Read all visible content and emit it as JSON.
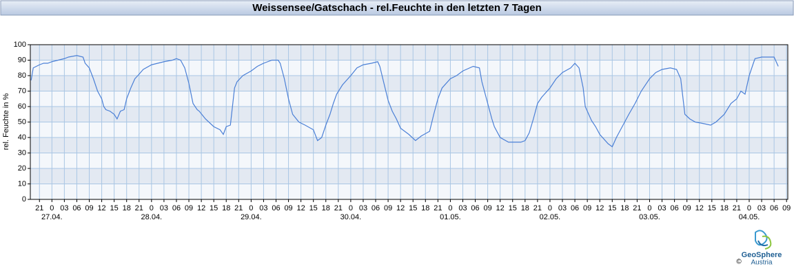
{
  "chart_data": {
    "type": "line",
    "title": "Weissensee/Gatschach - rel.Feuchte in den letzten 7 Tagen",
    "ylabel": "rel. Feuchte in %",
    "color": "#4a7fd6",
    "grid": true,
    "ylim": [
      0,
      100
    ],
    "yticks": [
      0,
      10,
      20,
      30,
      40,
      50,
      60,
      70,
      80,
      90,
      100
    ],
    "xlim": [
      -5.2,
      177.3
    ],
    "xticks": [
      {
        "value": -3,
        "label": "21"
      },
      {
        "value": 0,
        "label": "0"
      },
      {
        "value": 3,
        "label": "03"
      },
      {
        "value": 6,
        "label": "06"
      },
      {
        "value": 9,
        "label": "09"
      },
      {
        "value": 12,
        "label": "12"
      },
      {
        "value": 15,
        "label": "15"
      },
      {
        "value": 18,
        "label": "18"
      },
      {
        "value": 21,
        "label": "21"
      },
      {
        "value": 24,
        "label": "0"
      },
      {
        "value": 27,
        "label": "03"
      },
      {
        "value": 30,
        "label": "06"
      },
      {
        "value": 33,
        "label": "09"
      },
      {
        "value": 36,
        "label": "12"
      },
      {
        "value": 39,
        "label": "15"
      },
      {
        "value": 42,
        "label": "18"
      },
      {
        "value": 45,
        "label": "21"
      },
      {
        "value": 48,
        "label": "0"
      },
      {
        "value": 51,
        "label": "03"
      },
      {
        "value": 54,
        "label": "06"
      },
      {
        "value": 57,
        "label": "09"
      },
      {
        "value": 60,
        "label": "12"
      },
      {
        "value": 63,
        "label": "15"
      },
      {
        "value": 66,
        "label": "18"
      },
      {
        "value": 69,
        "label": "21"
      },
      {
        "value": 72,
        "label": "0"
      },
      {
        "value": 75,
        "label": "03"
      },
      {
        "value": 78,
        "label": "06"
      },
      {
        "value": 81,
        "label": "09"
      },
      {
        "value": 84,
        "label": "12"
      },
      {
        "value": 87,
        "label": "15"
      },
      {
        "value": 90,
        "label": "18"
      },
      {
        "value": 93,
        "label": "21"
      },
      {
        "value": 96,
        "label": "0"
      },
      {
        "value": 99,
        "label": "03"
      },
      {
        "value": 102,
        "label": "06"
      },
      {
        "value": 105,
        "label": "09"
      },
      {
        "value": 108,
        "label": "12"
      },
      {
        "value": 111,
        "label": "15"
      },
      {
        "value": 114,
        "label": "18"
      },
      {
        "value": 117,
        "label": "21"
      },
      {
        "value": 120,
        "label": "0"
      },
      {
        "value": 123,
        "label": "03"
      },
      {
        "value": 126,
        "label": "06"
      },
      {
        "value": 129,
        "label": "09"
      },
      {
        "value": 132,
        "label": "12"
      },
      {
        "value": 135,
        "label": "15"
      },
      {
        "value": 138,
        "label": "18"
      },
      {
        "value": 141,
        "label": "21"
      },
      {
        "value": 144,
        "label": "0"
      },
      {
        "value": 147,
        "label": "03"
      },
      {
        "value": 150,
        "label": "06"
      },
      {
        "value": 153,
        "label": "09"
      },
      {
        "value": 156,
        "label": "12"
      },
      {
        "value": 159,
        "label": "15"
      },
      {
        "value": 162,
        "label": "18"
      },
      {
        "value": 165,
        "label": "21"
      },
      {
        "value": 168,
        "label": "0"
      },
      {
        "value": 171,
        "label": "03"
      },
      {
        "value": 174,
        "label": "06"
      },
      {
        "value": 177,
        "label": "09"
      }
    ],
    "xdays": [
      {
        "value": 0,
        "label": "27.04."
      },
      {
        "value": 24,
        "label": "28.04."
      },
      {
        "value": 48,
        "label": "29.04."
      },
      {
        "value": 72,
        "label": "30.04."
      },
      {
        "value": 96,
        "label": "01.05."
      },
      {
        "value": 120,
        "label": "02.05."
      },
      {
        "value": 144,
        "label": "03.05."
      },
      {
        "value": 168,
        "label": "04.05."
      }
    ],
    "x": [
      -5,
      -4.5,
      -3,
      -2,
      -1,
      0,
      3,
      4,
      6,
      7.5,
      8,
      9,
      10,
      11,
      12,
      12.5,
      13,
      14,
      15,
      15.7,
      16.5,
      17.4,
      18,
      19,
      20,
      20.7,
      22,
      24,
      25.5,
      27,
      29,
      30,
      31,
      32,
      33,
      34,
      35,
      35.5,
      37,
      39,
      40.5,
      41.3,
      42,
      43,
      44,
      44.6,
      46,
      48,
      49.5,
      51,
      53,
      54.5,
      55,
      56,
      57,
      58,
      59.5,
      61,
      63,
      64,
      65,
      66,
      67,
      67.8,
      68.6,
      70,
      72,
      73.5,
      75,
      77,
      78.5,
      79,
      80,
      81,
      82,
      83,
      84,
      86,
      87.6,
      89,
      91,
      92,
      93,
      94,
      96,
      97.5,
      99,
      101.5,
      103,
      103.6,
      105,
      106,
      106.6,
      108,
      110,
      111.6,
      113,
      114,
      115,
      116,
      117,
      118,
      120,
      121.5,
      123,
      125,
      126,
      127,
      128,
      128.5,
      130,
      131,
      132,
      134,
      135,
      136,
      137,
      139,
      140.5,
      142,
      144,
      145.5,
      147,
      149,
      150.5,
      151.5,
      152.5,
      153.7,
      155,
      157,
      158.7,
      160,
      162,
      163.6,
      165,
      166,
      167,
      168,
      169,
      169.4,
      171,
      174,
      175
    ],
    "values": [
      77,
      85,
      87,
      88,
      88,
      89,
      91,
      92,
      93,
      92,
      88,
      85,
      78,
      70,
      65,
      60,
      58,
      57,
      55,
      52,
      57,
      58,
      65,
      72,
      78,
      80,
      84,
      87,
      88,
      89,
      90,
      91,
      90,
      85,
      75,
      62,
      58,
      57,
      52,
      47,
      45,
      42,
      47,
      48,
      72,
      76,
      80,
      83,
      86,
      88,
      90,
      90,
      88,
      78,
      65,
      55,
      50,
      48,
      45,
      38,
      40,
      48,
      55,
      62,
      68,
      74,
      80,
      85,
      87,
      88,
      89,
      86,
      75,
      64,
      57,
      52,
      46,
      42,
      38,
      41,
      44,
      55,
      65,
      72,
      78,
      80,
      83,
      86,
      85,
      76,
      62,
      52,
      47,
      40,
      37,
      37,
      37,
      38,
      43,
      52,
      62,
      66,
      72,
      78,
      82,
      85,
      88,
      85,
      72,
      60,
      51,
      47,
      42,
      36,
      34,
      40,
      45,
      55,
      62,
      70,
      78,
      82,
      84,
      85,
      84,
      78,
      55,
      52,
      50,
      49,
      48,
      50,
      55,
      62,
      65,
      70,
      68,
      80,
      88,
      91,
      92,
      92,
      86
    ]
  },
  "logo": {
    "name": "GeoSphere",
    "sub": "Austria",
    "copyright": "©"
  }
}
